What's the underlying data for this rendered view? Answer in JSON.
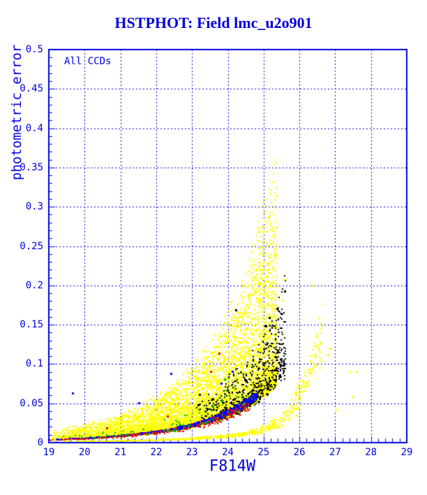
{
  "page": {
    "background": "#ffffff"
  },
  "chart_data": {
    "type": "scatter",
    "title": "HSTPHOT: Field lmc_u2o901",
    "annotation": "All CCDs",
    "xlabel": "F814W",
    "ylabel": "photometric error",
    "xlim": [
      19,
      29
    ],
    "ylim": [
      0,
      0.5
    ],
    "x_tick_labels": [
      "19",
      "20",
      "21",
      "22",
      "23",
      "24",
      "25",
      "26",
      "27",
      "28",
      "29"
    ],
    "y_tick_labels": [
      "0",
      "0.05",
      "0.1",
      "0.15",
      "0.2",
      "0.25",
      "0.3",
      "0.35",
      "0.4",
      "0.45",
      "0.5"
    ],
    "x_minor_step": 0.2,
    "y_minor_step": 0.01,
    "grid": {
      "x_lines": [
        20,
        21,
        22,
        23,
        24,
        25,
        26,
        27,
        28
      ],
      "y_lines": [
        0.05,
        0.1,
        0.15,
        0.2,
        0.25,
        0.3,
        0.35,
        0.4,
        0.45
      ],
      "style": "dashed",
      "color": "#0000dd"
    },
    "colors": {
      "axis": "#0000dd",
      "title": "#0000dd",
      "labels": "#0000dd",
      "yellow": "#ffff00",
      "blue": "#0000ff",
      "black": "#000000",
      "red": "#ff0000",
      "green": "#00bb00"
    },
    "seed": 42,
    "envelopes": {
      "main": [
        [
          19,
          0.0035
        ],
        [
          20,
          0.0055
        ],
        [
          21,
          0.0085
        ],
        [
          22,
          0.0135
        ],
        [
          23,
          0.022
        ],
        [
          24,
          0.038
        ],
        [
          24.5,
          0.05
        ],
        [
          25,
          0.068
        ],
        [
          25.6,
          0.1
        ]
      ],
      "band2": [
        [
          19,
          0.0012
        ],
        [
          20,
          0.0016
        ],
        [
          21,
          0.0022
        ],
        [
          22,
          0.0032
        ],
        [
          23,
          0.005
        ],
        [
          24,
          0.008
        ],
        [
          24.8,
          0.0145
        ],
        [
          25.5,
          0.028
        ],
        [
          26,
          0.062
        ],
        [
          26.3,
          0.095
        ],
        [
          26.65,
          0.138
        ]
      ]
    },
    "series": [
      {
        "name": "dense-cloud-yellow",
        "color": "#ffff00",
        "envelope": "main",
        "count": 9500,
        "mag": [
          19,
          25.35
        ],
        "mag_power": 0.6,
        "spread": [
          0.97,
          3.2,
          3.5
        ],
        "jitter": 0.12,
        "size": 2
      },
      {
        "name": "second-chip-band-yellow",
        "color": "#ffff00",
        "envelope": "band2",
        "count": 800,
        "mag": [
          19,
          26.65
        ],
        "mag_power": 0.6,
        "spread": [
          0.85,
          0.35,
          1
        ],
        "jitter": 0.18,
        "size": 2
      },
      {
        "name": "faint-sequence-black",
        "color": "#000000",
        "envelope": "main",
        "count": 700,
        "mag": [
          23.0,
          25.6
        ],
        "mag_power": 0.6,
        "spread": [
          0.93,
          1.1,
          2
        ],
        "jitter": 0.12,
        "size": 2
      },
      {
        "name": "lower-envelope-blue",
        "color": "#0000ff",
        "envelope": "main",
        "count": 1500,
        "mag": [
          19,
          24.8
        ],
        "mag_power": 0.55,
        "spread": [
          0.93,
          0.16,
          1
        ],
        "jitter": 0.04,
        "size": 2
      },
      {
        "name": "below-envelope-red",
        "color": "#ff0000",
        "envelope": "main",
        "count": 260,
        "mag": [
          19,
          24.6
        ],
        "mag_power": 0.6,
        "spread": [
          0.78,
          0.26,
          1
        ],
        "jitter": 0.08,
        "size": 2
      },
      {
        "name": "sparse-green",
        "color": "#00bb00",
        "envelope": "main",
        "count": 130,
        "mag": [
          19.3,
          24.7
        ],
        "mag_power": 0.7,
        "spread": [
          0.88,
          1.0,
          2
        ],
        "jitter": 0.1,
        "size": 2
      }
    ],
    "extra_points": [
      {
        "name": "yellow-outliers",
        "color": "#ffff00",
        "size": 3,
        "points": [
          [
            23.9,
            0.152
          ],
          [
            24.42,
            0.164
          ],
          [
            24.55,
            0.185
          ],
          [
            24.7,
            0.21
          ],
          [
            24.9,
            0.209
          ],
          [
            25.1,
            0.204
          ],
          [
            25.55,
            0.207
          ],
          [
            25.5,
            0.18
          ],
          [
            26.33,
            0.199
          ],
          [
            26.84,
            0.119
          ],
          [
            26.77,
            0.111
          ],
          [
            27.4,
            0.089
          ],
          [
            27.57,
            0.09
          ],
          [
            27.46,
            0.058
          ],
          [
            27.0,
            0.041
          ],
          [
            25.9,
            0.034
          ]
        ]
      },
      {
        "name": "black-outliers",
        "color": "#000000",
        "size": 3,
        "points": [
          [
            25.57,
            0.192
          ],
          [
            25.36,
            0.17
          ],
          [
            25.15,
            0.158
          ],
          [
            24.2,
            0.168
          ],
          [
            25.05,
            0.147
          ]
        ]
      },
      {
        "name": "red-outliers",
        "color": "#ff0000",
        "size": 3,
        "points": [
          [
            23.73,
            0.113
          ],
          [
            23.5,
            0.09
          ],
          [
            22.3,
            0.033
          ],
          [
            20.6,
            0.018
          ]
        ]
      },
      {
        "name": "blue-outliers",
        "color": "#0000ff",
        "size": 3,
        "points": [
          [
            22.4,
            0.087
          ],
          [
            23.8,
            0.075
          ],
          [
            24.1,
            0.09
          ],
          [
            19.64,
            0.062
          ],
          [
            21.5,
            0.05
          ],
          [
            23.2,
            0.06
          ]
        ]
      },
      {
        "name": "green-outliers",
        "color": "#00bb00",
        "size": 3,
        "points": [
          [
            23.9,
            0.08
          ],
          [
            23.55,
            0.045
          ],
          [
            21.0,
            0.01
          ]
        ]
      }
    ]
  }
}
